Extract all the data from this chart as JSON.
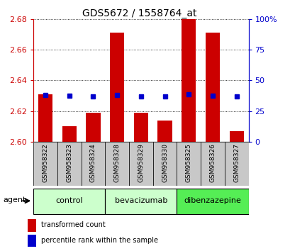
{
  "title": "GDS5672 / 1558764_at",
  "samples": [
    "GSM958322",
    "GSM958323",
    "GSM958324",
    "GSM958328",
    "GSM958329",
    "GSM958330",
    "GSM958325",
    "GSM958326",
    "GSM958327"
  ],
  "red_values": [
    2.631,
    2.61,
    2.619,
    2.671,
    2.619,
    2.614,
    2.68,
    2.671,
    2.607
  ],
  "blue_values": [
    2.6305,
    2.63,
    2.6295,
    2.6305,
    2.6295,
    2.6295,
    2.6308,
    2.6302,
    2.6295
  ],
  "y_min": 2.6,
  "y_max": 2.68,
  "y_ticks": [
    2.6,
    2.62,
    2.64,
    2.66,
    2.68
  ],
  "right_y_ticks": [
    0,
    25,
    50,
    75,
    100
  ],
  "right_y_labels": [
    "0",
    "25",
    "50",
    "75",
    "100%"
  ],
  "groups": [
    {
      "label": "control",
      "start": 0,
      "end": 2,
      "color": "#ccffcc"
    },
    {
      "label": "bevacizumab",
      "start": 3,
      "end": 5,
      "color": "#ccffcc"
    },
    {
      "label": "dibenzazepine",
      "start": 6,
      "end": 8,
      "color": "#55ee55"
    }
  ],
  "bar_color": "#cc0000",
  "dot_color": "#0000cc",
  "bar_base": 2.6,
  "background_color": "#ffffff",
  "agent_label": "agent",
  "legend_red": "transformed count",
  "legend_blue": "percentile rank within the sample",
  "left_axis_color": "#cc0000",
  "right_axis_color": "#0000cc",
  "title_color": "#000000",
  "xtick_bg_color": "#c8c8c8",
  "grid_color": "#000000"
}
